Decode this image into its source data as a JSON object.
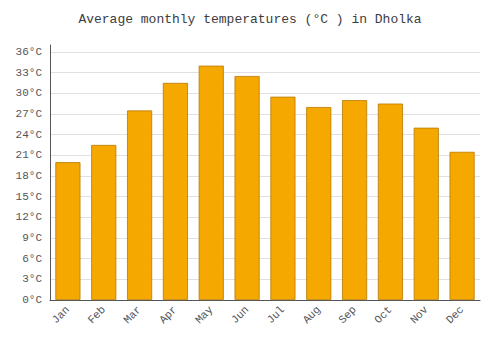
{
  "chart_data": {
    "type": "bar",
    "title": "Average monthly temperatures (°C ) in Dholka",
    "categories": [
      "Jan",
      "Feb",
      "Mar",
      "Apr",
      "May",
      "Jun",
      "Jul",
      "Aug",
      "Sep",
      "Oct",
      "Nov",
      "Dec"
    ],
    "values": [
      20,
      22.5,
      27.5,
      31.5,
      34,
      32.5,
      29.5,
      28,
      29,
      28.5,
      25,
      21.5
    ],
    "color": "#F5A800",
    "ylim": [
      0,
      37
    ],
    "yticks": [
      {
        "value": 0,
        "label": "0°C"
      },
      {
        "value": 3,
        "label": "3°C"
      },
      {
        "value": 6,
        "label": "6°C"
      },
      {
        "value": 9,
        "label": "9°C"
      },
      {
        "value": 12,
        "label": "12°C"
      },
      {
        "value": 15,
        "label": "15°C"
      },
      {
        "value": 18,
        "label": "18°C"
      },
      {
        "value": 21,
        "label": "21°C"
      },
      {
        "value": 24,
        "label": "24°C"
      },
      {
        "value": 27,
        "label": "27°C"
      },
      {
        "value": 30,
        "label": "30°C"
      },
      {
        "value": 33,
        "label": "33°C"
      },
      {
        "value": 36,
        "label": "36°C"
      }
    ],
    "grid": true
  }
}
